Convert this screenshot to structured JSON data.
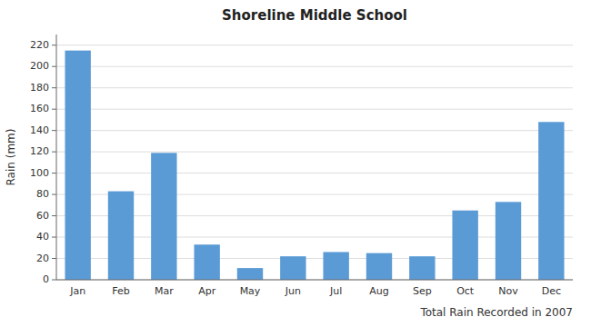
{
  "chart_data": {
    "type": "bar",
    "title": "Shoreline Middle School",
    "xlabel": "Total Rain Recorded in 2007",
    "ylabel": "Rain (mm)",
    "categories": [
      "Jan",
      "Feb",
      "Mar",
      "Apr",
      "May",
      "Jun",
      "Jul",
      "Aug",
      "Sep",
      "Oct",
      "Nov",
      "Dec"
    ],
    "values": [
      215,
      83,
      119,
      33,
      11,
      22,
      26,
      25,
      22,
      65,
      73,
      148
    ],
    "color": "#5B9BD5",
    "ylim": [
      0,
      230
    ],
    "yticks": [
      0,
      20,
      40,
      60,
      80,
      100,
      120,
      140,
      160,
      180,
      200,
      220
    ],
    "grid": true
  }
}
